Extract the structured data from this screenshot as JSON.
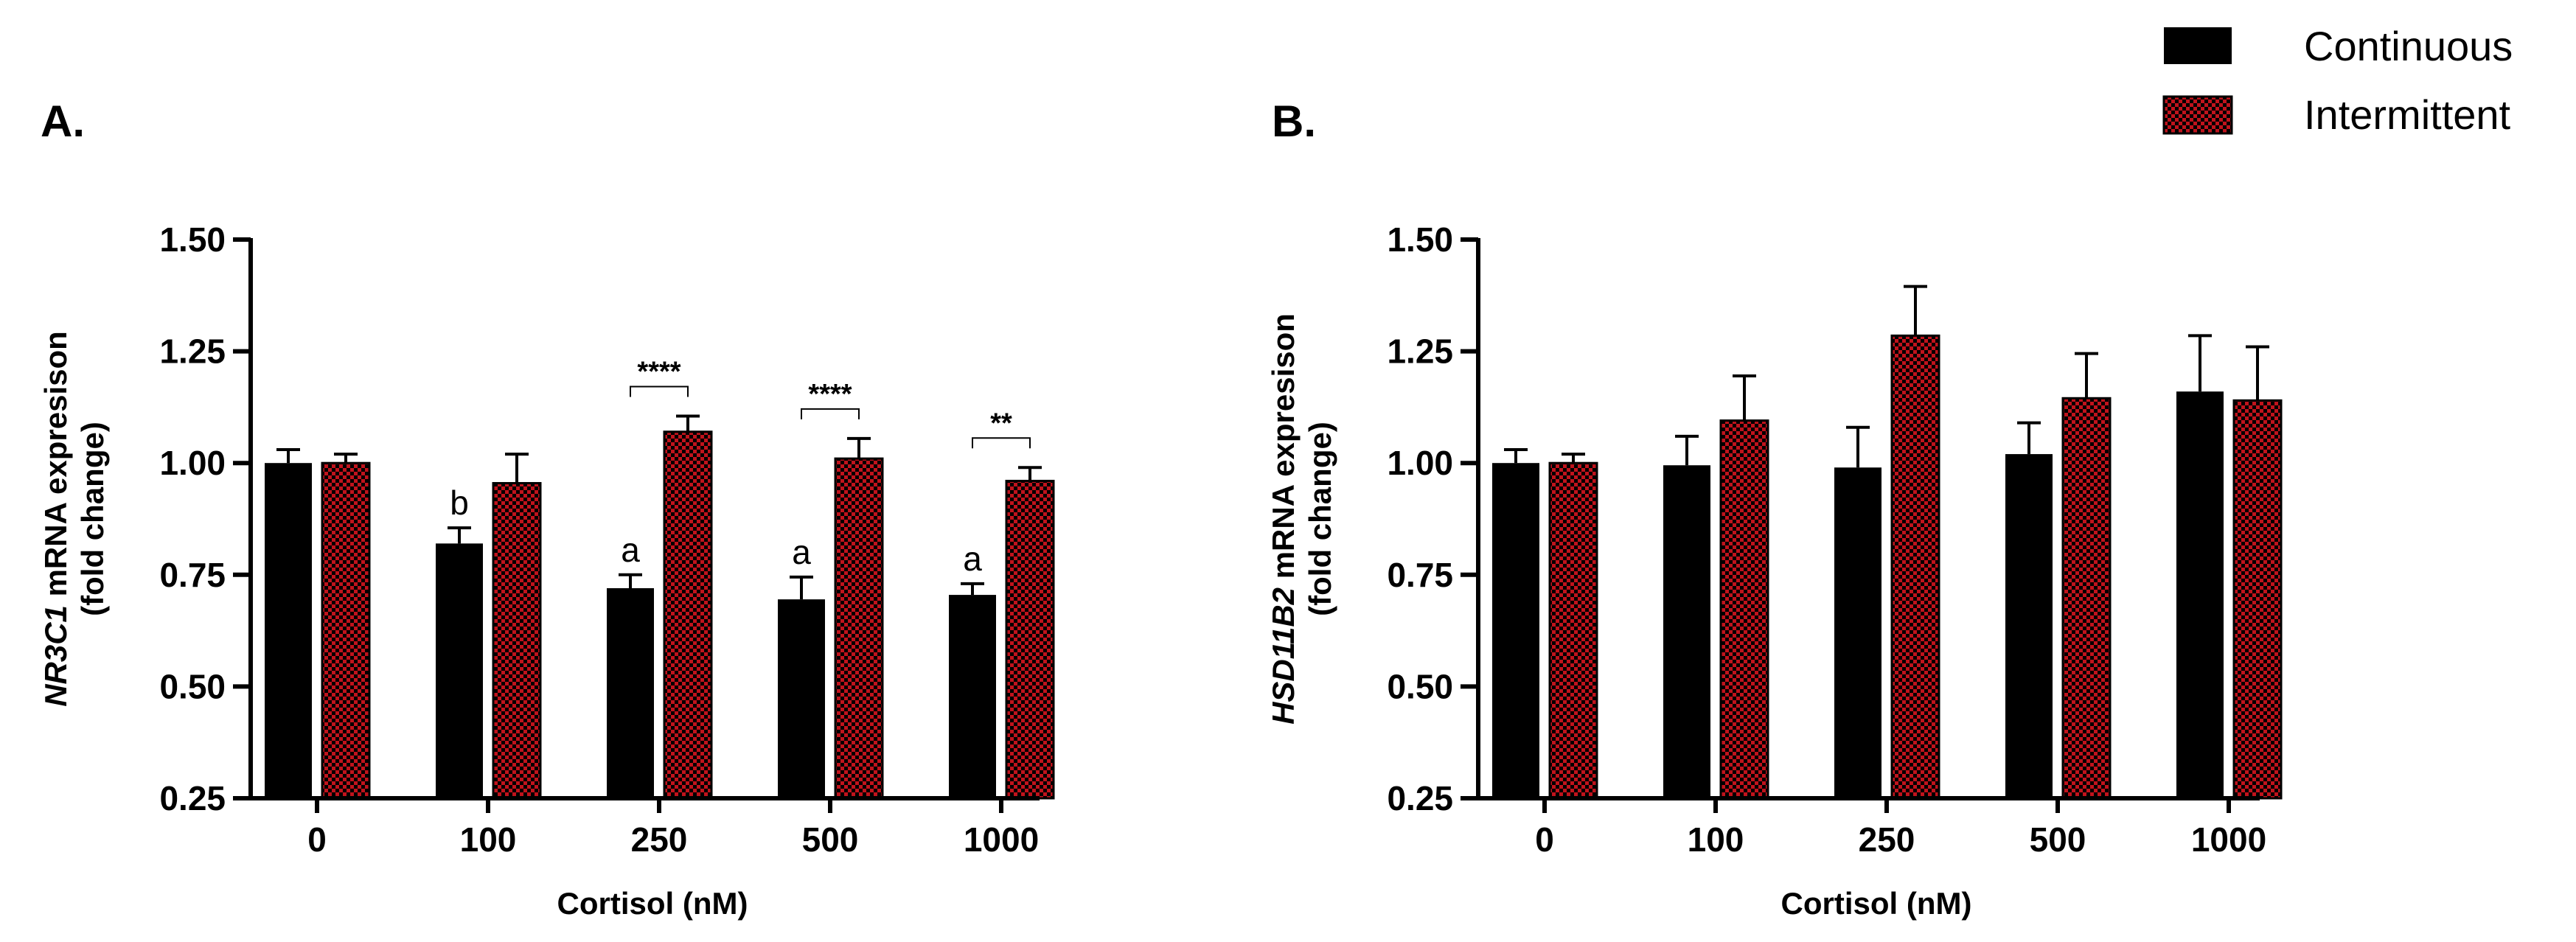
{
  "legend": {
    "entries": [
      {
        "name": "Continuous",
        "pattern": "solid",
        "color": "#000000"
      },
      {
        "name": "Intermittent",
        "pattern": "checker",
        "color": "#c0131c"
      }
    ]
  },
  "chart_data": [
    {
      "type": "bar",
      "panel_label": "A.",
      "title": "",
      "categories": [
        "0",
        "100",
        "250",
        "500",
        "1000"
      ],
      "xlabel": "Cortisol (nM)",
      "ylabel_italic": "NR3C1",
      "ylabel_rest": " mRNA expresison",
      "ylabel_line2": "(fold change)",
      "ylim": [
        0.25,
        1.5
      ],
      "yticks": [
        "0.25",
        "0.50",
        "0.75",
        "1.00",
        "1.25",
        "1.50"
      ],
      "series": [
        {
          "name": "Continuous",
          "values": [
            1.0,
            0.82,
            0.72,
            0.695,
            0.705
          ],
          "errors": [
            0.03,
            0.035,
            0.03,
            0.05,
            0.025
          ],
          "letters": [
            "",
            "b",
            "a",
            "a",
            "a"
          ]
        },
        {
          "name": "Intermittent",
          "values": [
            1.0,
            0.955,
            1.07,
            1.01,
            0.96
          ],
          "errors": [
            0.02,
            0.065,
            0.035,
            0.045,
            0.03
          ],
          "letters": [
            "",
            "",
            "",
            "",
            ""
          ]
        }
      ],
      "significance": [
        {
          "category": "250",
          "label": "****"
        },
        {
          "category": "500",
          "label": "****"
        },
        {
          "category": "1000",
          "label": "**"
        }
      ]
    },
    {
      "type": "bar",
      "panel_label": "B.",
      "title": "",
      "categories": [
        "0",
        "100",
        "250",
        "500",
        "1000"
      ],
      "xlabel": "Cortisol (nM)",
      "ylabel_italic": "HSD11B2",
      "ylabel_rest": " mRNA expresison",
      "ylabel_line2": "(fold change)",
      "ylim": [
        0.25,
        1.5
      ],
      "yticks": [
        "0.25",
        "0.50",
        "0.75",
        "1.00",
        "1.25",
        "1.50"
      ],
      "series": [
        {
          "name": "Continuous",
          "values": [
            1.0,
            0.995,
            0.99,
            1.02,
            1.16
          ],
          "errors": [
            0.03,
            0.065,
            0.09,
            0.07,
            0.125
          ],
          "letters": [
            "",
            "",
            "",
            "",
            ""
          ]
        },
        {
          "name": "Intermittent",
          "values": [
            1.0,
            1.095,
            1.285,
            1.145,
            1.14
          ],
          "errors": [
            0.02,
            0.1,
            0.11,
            0.1,
            0.12
          ],
          "letters": [
            "",
            "",
            "",
            "",
            ""
          ]
        }
      ],
      "significance": []
    }
  ]
}
